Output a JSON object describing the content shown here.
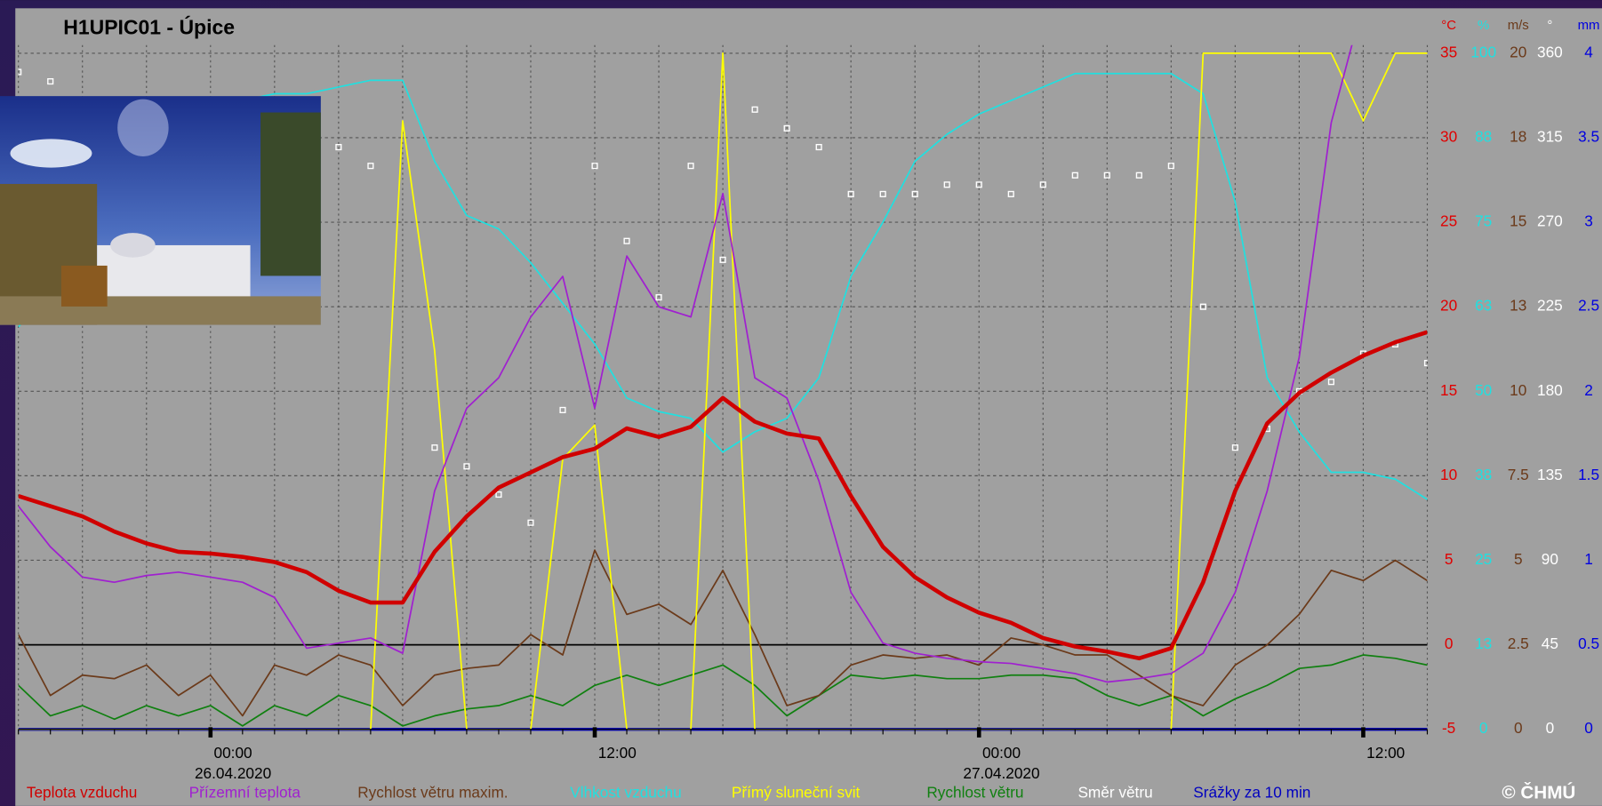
{
  "chart_data": {
    "type": "multi-axis-line",
    "title": "H1UPIC01 - Úpice",
    "copyright": "© ČHMÚ",
    "xlim": [
      -6,
      38
    ],
    "xticks": [
      {
        "value": 0,
        "label": "00:00",
        "date": "26.04.2020"
      },
      {
        "value": 12,
        "label": "12:00"
      },
      {
        "value": 24,
        "label": "00:00",
        "date": "27.04.2020"
      },
      {
        "value": 36,
        "label": "12:00"
      }
    ],
    "x": [
      -6,
      -5,
      -4,
      -3,
      -2,
      -1,
      0,
      1,
      2,
      3,
      4,
      5,
      6,
      7,
      8,
      9,
      10,
      11,
      12,
      13,
      14,
      15,
      16,
      17,
      18,
      19,
      20,
      21,
      22,
      23,
      24,
      25,
      26,
      27,
      28,
      29,
      30,
      31,
      32,
      33,
      34,
      35,
      36,
      37,
      38
    ],
    "grid": true,
    "axes": [
      {
        "unit": "°C",
        "color": "#e00000",
        "lim": [
          -5,
          35
        ],
        "ticks": [
          -5,
          0,
          5,
          10,
          15,
          20,
          25,
          30,
          35
        ]
      },
      {
        "unit": "%",
        "color": "#20e0e0",
        "lim": [
          0,
          100
        ],
        "ticks": [
          0,
          {
            "value": 12.5,
            "label": "13"
          },
          25,
          {
            "value": 37.5,
            "label": "38"
          },
          50,
          {
            "value": 62.5,
            "label": "63"
          },
          75,
          {
            "value": 87.5,
            "label": "88"
          },
          100
        ]
      },
      {
        "unit": "m/s",
        "color": "#6b3a1a",
        "lim": [
          0,
          20
        ],
        "ticks": [
          0,
          2.5,
          5,
          7.5,
          10,
          {
            "value": 12.5,
            "label": "13"
          },
          15,
          {
            "value": 17.5,
            "label": "18"
          },
          20
        ]
      },
      {
        "unit": "°",
        "color": "#ffffff",
        "lim": [
          0,
          360
        ],
        "ticks": [
          0,
          45,
          90,
          135,
          180,
          225,
          270,
          315,
          360
        ]
      },
      {
        "unit": "mm",
        "color": "#0000e0",
        "lim": [
          0,
          4
        ],
        "ticks": [
          0,
          0.5,
          1,
          1.5,
          2,
          2.5,
          3,
          3.5,
          4
        ]
      }
    ],
    "series": [
      {
        "name": "Teplota vzduchu",
        "color": "#d00000",
        "axis": 0,
        "style": "line",
        "width": 4,
        "values": [
          8.8,
          8.2,
          7.6,
          6.7,
          6.0,
          5.5,
          5.4,
          5.2,
          4.9,
          4.3,
          3.2,
          2.5,
          2.5,
          5.5,
          7.6,
          9.3,
          10.2,
          11.1,
          11.6,
          12.8,
          12.3,
          12.9,
          14.6,
          13.2,
          12.5,
          12.2,
          8.8,
          5.8,
          4.0,
          2.8,
          1.9,
          1.3,
          0.4,
          -0.1,
          -0.4,
          -0.8,
          -0.2,
          3.7,
          9.1,
          13.1,
          14.9,
          16.1,
          17.1,
          17.9,
          18.5
        ]
      },
      {
        "name": "Přízemní teplota",
        "color": "#a020d0",
        "axis": 0,
        "style": "line",
        "width": 1.5,
        "values": [
          8.2,
          5.8,
          4.0,
          3.7,
          4.1,
          4.3,
          4.0,
          3.7,
          2.8,
          -0.2,
          0.1,
          0.4,
          -0.5,
          9.1,
          14.0,
          15.8,
          19.4,
          21.8,
          14.0,
          23.0,
          20.0,
          19.4,
          26.7,
          15.8,
          14.6,
          9.7,
          3.1,
          0.1,
          -0.5,
          -0.8,
          -1.0,
          -1.1,
          -1.4,
          -1.7,
          -2.2,
          -2.0,
          -1.7,
          -0.5,
          3.1,
          9.1,
          17.0,
          30.9,
          38,
          40,
          40
        ]
      },
      {
        "name": "Rychlost větru maxim.",
        "color": "#6b3a1a",
        "axis": 2,
        "style": "line",
        "width": 1.5,
        "values": [
          2.8,
          1.0,
          1.6,
          1.5,
          1.9,
          1.0,
          1.6,
          0.4,
          1.9,
          1.6,
          2.2,
          1.9,
          0.7,
          1.6,
          1.8,
          1.9,
          2.8,
          2.2,
          5.3,
          3.4,
          3.7,
          3.1,
          4.7,
          2.8,
          0.7,
          1.0,
          1.9,
          2.2,
          2.1,
          2.2,
          1.9,
          2.7,
          2.5,
          2.2,
          2.2,
          1.6,
          1.0,
          0.7,
          1.9,
          2.5,
          3.4,
          4.7,
          4.4,
          5.0,
          4.4
        ]
      },
      {
        "name": "Vlhkost vzduchu",
        "color": "#20e0e0",
        "axis": 1,
        "style": "line",
        "width": 1.5,
        "values": [
          59.5,
          65,
          72,
          80,
          86,
          90,
          92,
          93,
          94,
          94,
          95,
          96,
          96,
          84,
          76,
          74,
          69,
          63,
          57,
          49,
          47,
          46,
          41,
          44,
          46,
          52,
          67,
          75,
          84,
          88,
          91,
          93,
          95,
          97,
          97,
          97,
          97,
          94,
          78,
          52,
          44,
          38,
          38,
          37,
          34
        ]
      },
      {
        "name": "Přímý sluneční svit",
        "color": "#ffff00",
        "axis": 1,
        "style": "line",
        "width": 1.5,
        "values": [
          0,
          0,
          0,
          0,
          0,
          0,
          0,
          0,
          0,
          0,
          0,
          0,
          90,
          56,
          0,
          0,
          0,
          40,
          45,
          0,
          0,
          0,
          100,
          0,
          0,
          0,
          0,
          0,
          0,
          0,
          0,
          0,
          0,
          0,
          0,
          0,
          0,
          100,
          100,
          100,
          100,
          100,
          90,
          100,
          100
        ]
      },
      {
        "name": "Rychlost větru",
        "color": "#108010",
        "axis": 2,
        "style": "line",
        "width": 1.5,
        "values": [
          1.3,
          0.4,
          0.7,
          0.3,
          0.7,
          0.4,
          0.7,
          0.1,
          0.7,
          0.4,
          1.0,
          0.7,
          0.1,
          0.4,
          0.6,
          0.7,
          1.0,
          0.7,
          1.3,
          1.6,
          1.3,
          1.6,
          1.9,
          1.3,
          0.4,
          1.0,
          1.6,
          1.5,
          1.6,
          1.5,
          1.5,
          1.6,
          1.6,
          1.5,
          1.0,
          0.7,
          1.0,
          0.4,
          0.9,
          1.3,
          1.8,
          1.9,
          2.2,
          2.1,
          1.9
        ]
      },
      {
        "name": "Směr větru",
        "color": "#ffffff",
        "axis": 3,
        "style": "points",
        "values": [
          350,
          345,
          null,
          null,
          null,
          null,
          null,
          null,
          null,
          300,
          310,
          300,
          null,
          150,
          140,
          125,
          110,
          170,
          300,
          260,
          230,
          300,
          250,
          330,
          320,
          310,
          285,
          285,
          285,
          290,
          290,
          285,
          290,
          295,
          295,
          295,
          300,
          225,
          150,
          160,
          180,
          185,
          200,
          205,
          195
        ]
      },
      {
        "name": "Srážky za 10 min",
        "color": "#0000c0",
        "axis": 4,
        "style": "line",
        "width": 3,
        "values": [
          0,
          0,
          0,
          0,
          0,
          0,
          0,
          0,
          0,
          0,
          0,
          0,
          0,
          0,
          0,
          0,
          0,
          0,
          0,
          0,
          0,
          0,
          0,
          0,
          0,
          0,
          0,
          0,
          0,
          0,
          0,
          0,
          0,
          0,
          0,
          0,
          0,
          0,
          0,
          0,
          0,
          0,
          0,
          0,
          0
        ]
      }
    ]
  }
}
